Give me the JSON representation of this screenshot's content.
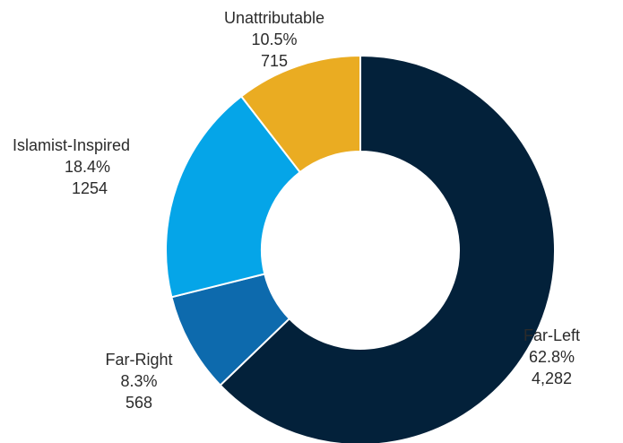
{
  "chart_data": {
    "type": "pie",
    "title": "",
    "legend": "none",
    "slices": [
      {
        "label": "Far-Left",
        "percent_label": "62.8%",
        "value_label": "4,282",
        "value": 4282,
        "color": "#03213a"
      },
      {
        "label": "Far-Right",
        "percent_label": "8.3%",
        "value_label": "568",
        "value": 568,
        "color": "#0d6aad"
      },
      {
        "label": "Islamist-Inspired",
        "percent_label": "18.4%",
        "value_label": "1254",
        "value": 1254,
        "color": "#05a5e8"
      },
      {
        "label": "Unattributable",
        "percent_label": "10.5%",
        "value_label": "715",
        "value": 715,
        "color": "#eaac22"
      }
    ]
  }
}
